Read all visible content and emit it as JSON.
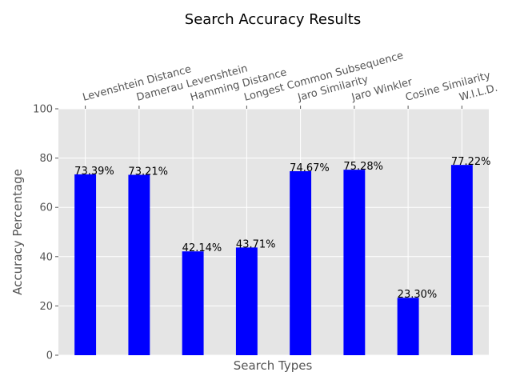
{
  "chart_data": {
    "type": "bar",
    "title": "Search Accuracy Results",
    "xlabel": "Search Types",
    "ylabel": "Accuracy Percentage",
    "ylim": [
      0,
      100
    ],
    "yticks": [
      0,
      20,
      40,
      60,
      80,
      100
    ],
    "grid": true,
    "categories": [
      "Levenshtein Distance",
      "Damerau Levenshtein",
      "Hamming Distance",
      "Longest Common Subsequence",
      "Jaro Similarity",
      "Jaro Winkler",
      "Cosine Similarity",
      "W.I.L.D."
    ],
    "values": [
      73.39,
      73.21,
      42.14,
      43.71,
      74.67,
      75.28,
      23.3,
      77.22
    ],
    "data_labels": [
      "73.39%",
      "73.21%",
      "42.14%",
      "43.71%",
      "74.67%",
      "75.28%",
      "23.30%",
      "77.22%"
    ],
    "bar_color": "#0000ff",
    "background_color": "#e5e5e5",
    "grid_color": "#ffffff"
  }
}
